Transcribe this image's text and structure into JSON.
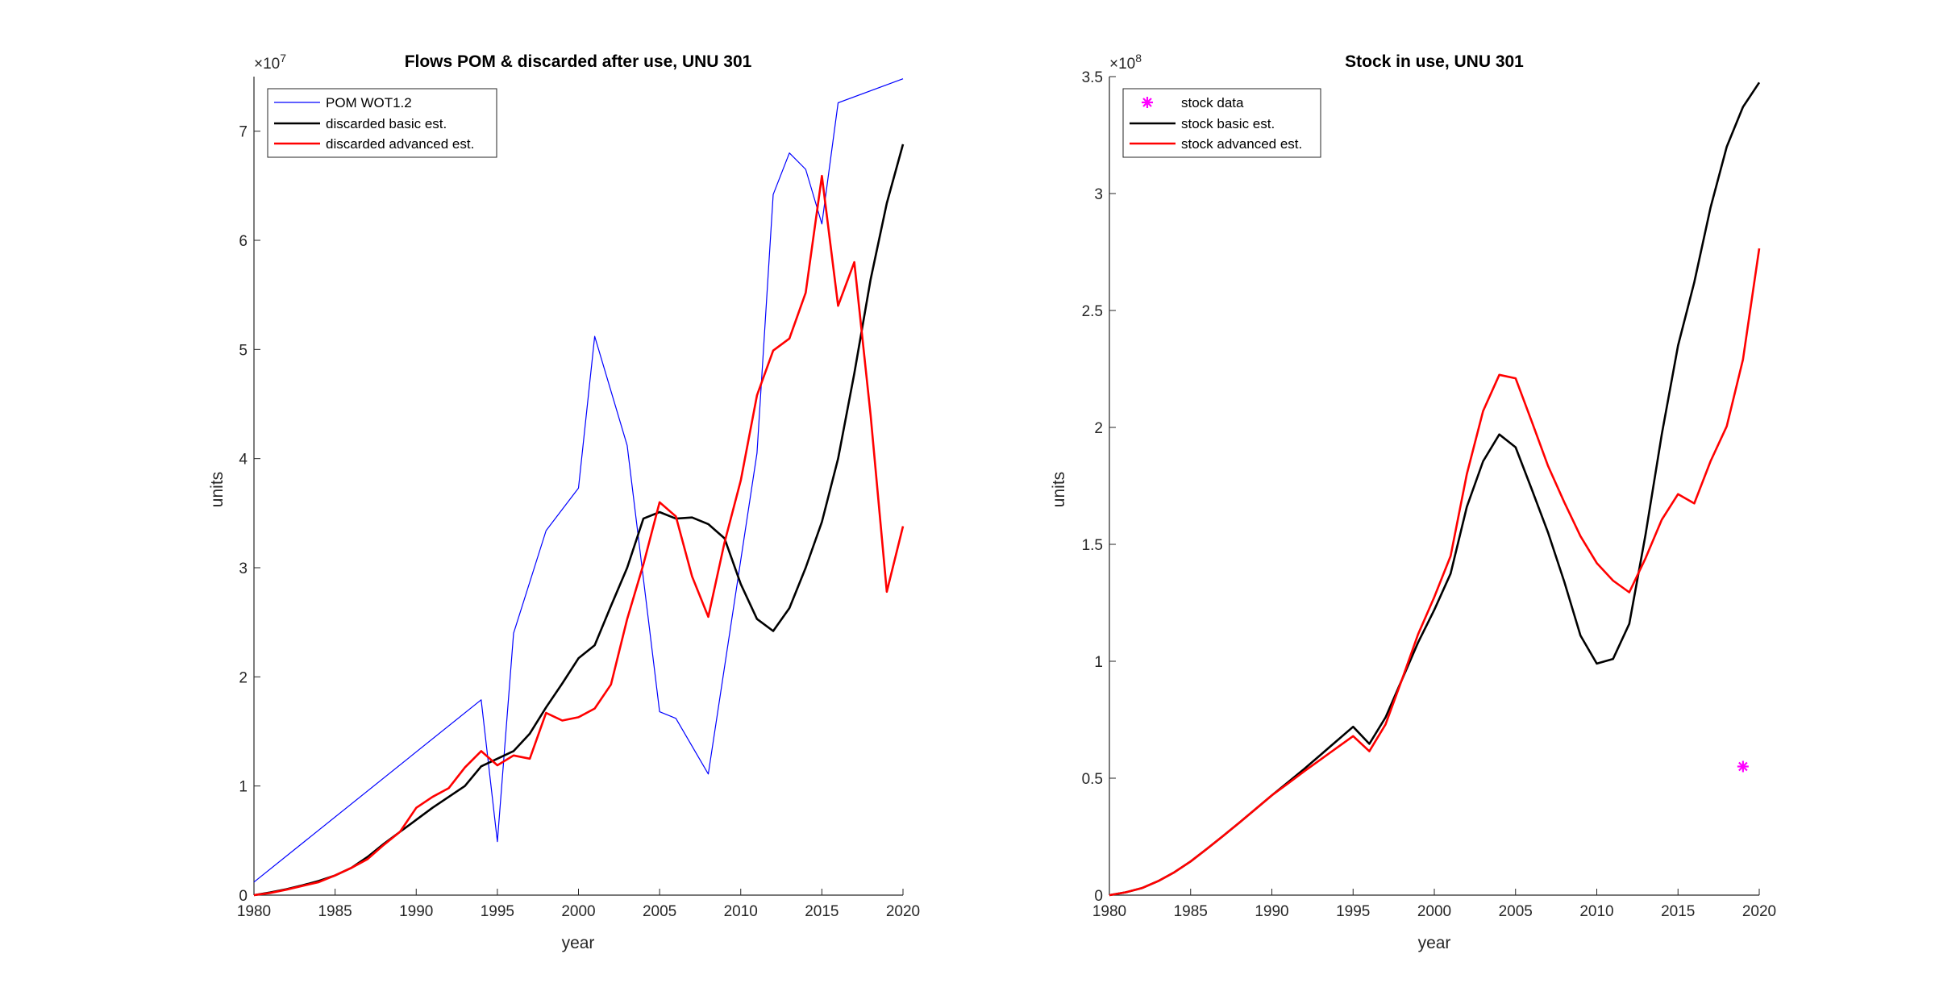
{
  "chart_data": [
    {
      "type": "line",
      "title": "Flows POM & discarded after use, UNU 301",
      "xlabel": "year",
      "ylabel": "units",
      "exponent_base": "10",
      "exponent_power": "7",
      "xlim": [
        1980,
        2020
      ],
      "ylim": [
        0,
        75000000
      ],
      "x_ticks": [
        1980,
        1985,
        1990,
        1995,
        2000,
        2005,
        2010,
        2015,
        2020
      ],
      "x_tick_labels": [
        "1980",
        "1985",
        "1990",
        "1995",
        "2000",
        "2005",
        "2010",
        "2015",
        "2020"
      ],
      "y_ticks": [
        0,
        10000000,
        20000000,
        30000000,
        40000000,
        50000000,
        60000000,
        70000000
      ],
      "y_tick_labels": [
        "0",
        "1",
        "2",
        "3",
        "4",
        "5",
        "6",
        "7"
      ],
      "grid": false,
      "legend_position": "top-left",
      "series": [
        {
          "name": "POM WOT1.2",
          "color": "#0000ff",
          "width": 1.2,
          "x": [
            1980,
            1994,
            1995,
            1996,
            1998,
            2000,
            2001,
            2003,
            2005,
            2006,
            2008,
            2011,
            2012,
            2013,
            2014,
            2015,
            2016,
            2020
          ],
          "y": [
            1200000,
            17900000,
            4900000,
            24000000,
            33400000,
            37300000,
            51200000,
            41200000,
            16800000,
            16200000,
            11100000,
            40500000,
            64200000,
            68000000,
            66500000,
            61500000,
            72600000,
            74800000
          ]
        },
        {
          "name": "discarded basic est.",
          "color": "#000000",
          "width": 2.6,
          "x": [
            1980,
            1981,
            1982,
            1983,
            1984,
            1985,
            1986,
            1987,
            1988,
            1989,
            1990,
            1991,
            1992,
            1993,
            1994,
            1995,
            1996,
            1997,
            1998,
            1999,
            2000,
            2001,
            2002,
            2003,
            2004,
            2005,
            2006,
            2007,
            2008,
            2009,
            2010,
            2011,
            2012,
            2013,
            2014,
            2015,
            2016,
            2017,
            2018,
            2019,
            2020
          ],
          "y": [
            0,
            250000,
            550000,
            900000,
            1300000,
            1800000,
            2500000,
            3500000,
            4700000,
            5800000,
            6900000,
            8000000,
            9000000,
            10000000,
            11800000,
            12500000,
            13200000,
            14800000,
            17200000,
            19400000,
            21700000,
            22900000,
            26500000,
            30000000,
            34500000,
            35100000,
            34500000,
            34600000,
            34000000,
            32700000,
            28500000,
            25300000,
            24200000,
            26300000,
            30000000,
            34200000,
            40000000,
            47800000,
            56400000,
            63400000,
            68800000
          ]
        },
        {
          "name": "discarded advanced est.",
          "color": "#ff0000",
          "width": 2.6,
          "x": [
            1980,
            1981,
            1982,
            1983,
            1984,
            1985,
            1986,
            1987,
            1988,
            1989,
            1990,
            1991,
            1992,
            1993,
            1994,
            1995,
            1996,
            1997,
            1998,
            1999,
            2000,
            2001,
            2002,
            2003,
            2004,
            2005,
            2006,
            2007,
            2008,
            2009,
            2010,
            2011,
            2012,
            2013,
            2014,
            2015,
            2016,
            2017,
            2018,
            2019,
            2020
          ],
          "y": [
            0,
            200000,
            500000,
            850000,
            1200000,
            1800000,
            2500000,
            3300000,
            4600000,
            5800000,
            8000000,
            9000000,
            9800000,
            11700000,
            13200000,
            11900000,
            12800000,
            12500000,
            16700000,
            16000000,
            16300000,
            17100000,
            19300000,
            25300000,
            30300000,
            36000000,
            34700000,
            29200000,
            25500000,
            32300000,
            38000000,
            45800000,
            49900000,
            51000000,
            55200000,
            65900000,
            54000000,
            58000000,
            44000000,
            27800000,
            33800000
          ]
        }
      ]
    },
    {
      "type": "line",
      "title": "Stock in use, UNU 301",
      "xlabel": "year",
      "ylabel": "units",
      "exponent_base": "10",
      "exponent_power": "8",
      "xlim": [
        1980,
        2020
      ],
      "ylim": [
        0,
        350000000
      ],
      "x_ticks": [
        1980,
        1985,
        1990,
        1995,
        2000,
        2005,
        2010,
        2015,
        2020
      ],
      "x_tick_labels": [
        "1980",
        "1985",
        "1990",
        "1995",
        "2000",
        "2005",
        "2010",
        "2015",
        "2020"
      ],
      "y_ticks": [
        0,
        50000000,
        100000000,
        150000000,
        200000000,
        250000000,
        300000000,
        350000000
      ],
      "y_tick_labels": [
        "0",
        "0.5",
        "1",
        "1.5",
        "2",
        "2.5",
        "3",
        "3.5"
      ],
      "grid": false,
      "legend_position": "top-left",
      "series": [
        {
          "name": "stock data",
          "color": "#ff00ff",
          "marker": "asterisk",
          "x": [
            2019
          ],
          "y": [
            55000000
          ]
        },
        {
          "name": "stock basic est.",
          "color": "#000000",
          "width": 2.6,
          "x": [
            1980,
            1981,
            1982,
            1983,
            1984,
            1985,
            1986,
            1987,
            1988,
            1989,
            1990,
            1991,
            1992,
            1993,
            1994,
            1995,
            1996,
            1997,
            1998,
            1999,
            2000,
            2001,
            2002,
            2003,
            2004,
            2005,
            2006,
            2007,
            2008,
            2009,
            2010,
            2011,
            2012,
            2013,
            2014,
            2015,
            2016,
            2017,
            2018,
            2019,
            2020
          ],
          "y": [
            0,
            1200000,
            3000000,
            6000000,
            9800000,
            14400000,
            19800000,
            25300000,
            31000000,
            36800000,
            42700000,
            48300000,
            54000000,
            60000000,
            66000000,
            72000000,
            64700000,
            76000000,
            92000000,
            108000000,
            122000000,
            137500000,
            166000000,
            185500000,
            197000000,
            191500000,
            173500000,
            155000000,
            134000000,
            111000000,
            99000000,
            101000000,
            116000000,
            154000000,
            197000000,
            235000000,
            262000000,
            294000000,
            320000000,
            337000000,
            347500000
          ]
        },
        {
          "name": "stock advanced est.",
          "color": "#ff0000",
          "width": 2.6,
          "x": [
            1980,
            1981,
            1982,
            1983,
            1984,
            1985,
            1986,
            1987,
            1988,
            1989,
            1990,
            1991,
            1992,
            1993,
            1994,
            1995,
            1996,
            1997,
            1998,
            1999,
            2000,
            2001,
            2002,
            2003,
            2004,
            2005,
            2006,
            2007,
            2008,
            2009,
            2010,
            2011,
            2012,
            2013,
            2014,
            2015,
            2016,
            2017,
            2018,
            2019,
            2020
          ],
          "y": [
            0,
            1200000,
            3000000,
            6000000,
            9800000,
            14400000,
            19800000,
            25300000,
            31000000,
            36800000,
            42700000,
            47800000,
            53000000,
            58000000,
            63000000,
            68000000,
            61500000,
            73000000,
            92000000,
            111500000,
            127500000,
            145000000,
            180000000,
            207000000,
            222500000,
            221000000,
            202500000,
            183500000,
            168000000,
            153500000,
            142000000,
            134500000,
            129500000,
            144000000,
            160500000,
            171500000,
            167500000,
            185500000,
            200500000,
            229000000,
            276500000
          ]
        }
      ]
    }
  ]
}
